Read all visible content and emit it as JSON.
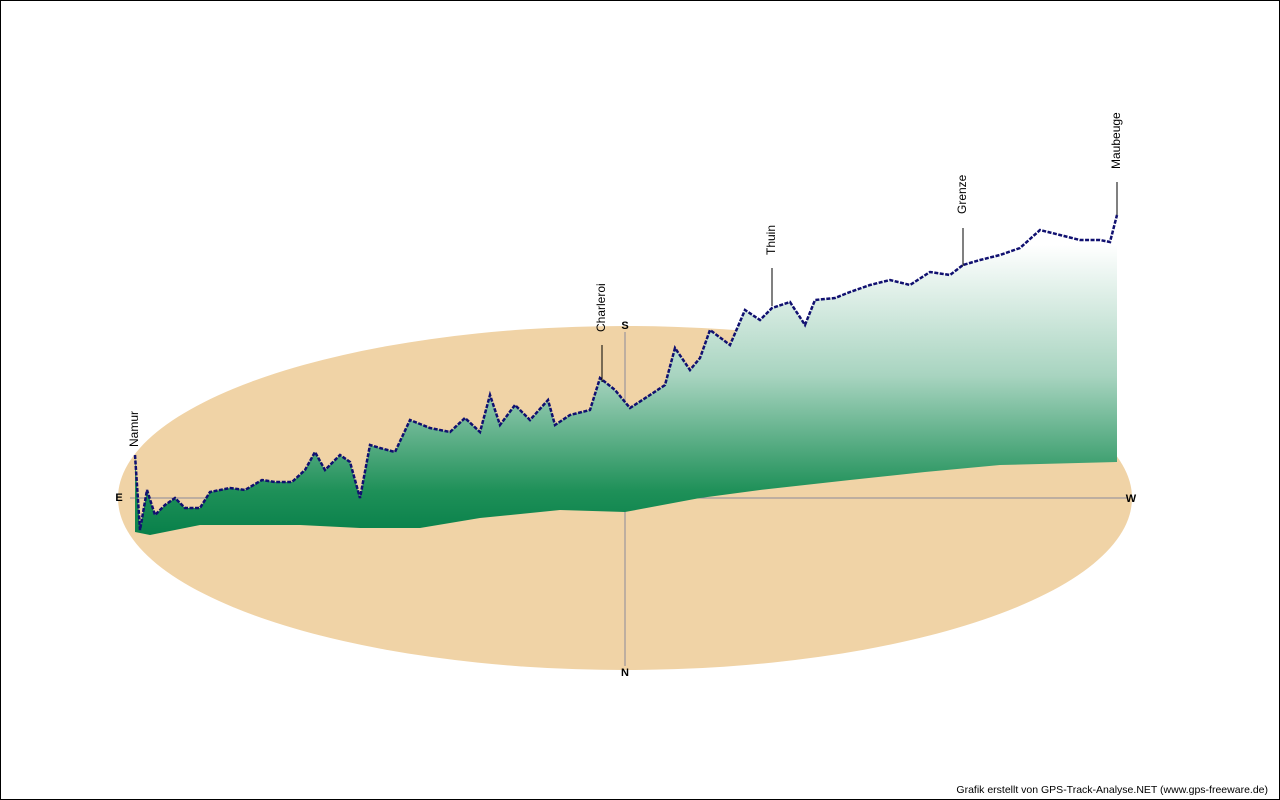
{
  "compass": {
    "east": "E",
    "west": "W",
    "south": "S",
    "north": "N"
  },
  "waypoints": [
    "Namur",
    "Charleroi",
    "Thuin",
    "Grenze",
    "Maubeuge"
  ],
  "credit": "Grafik erstellt von GPS-Track-Analyse.NET (www.gps-freeware.de)"
}
